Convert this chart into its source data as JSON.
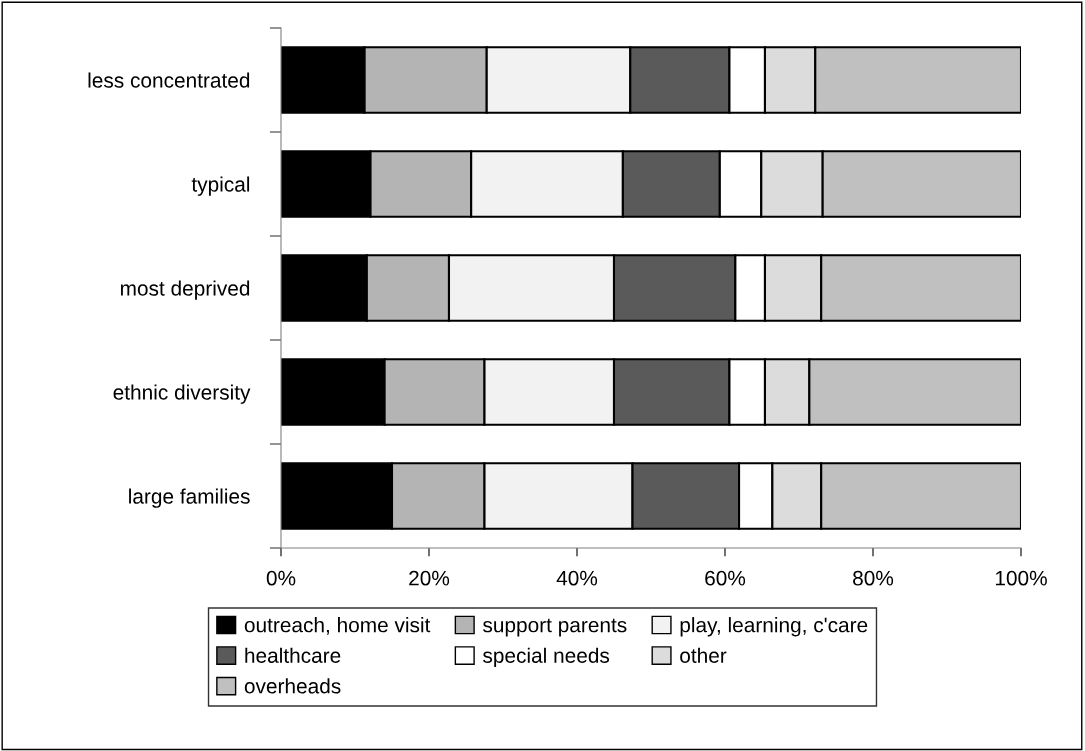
{
  "chart_data": {
    "type": "bar",
    "orientation": "horizontal",
    "stacked": true,
    "categories": [
      "less concentrated",
      "typical",
      "most deprived",
      "ethnic diversity",
      "large families"
    ],
    "series": [
      {
        "name": "outreach, home visit",
        "color": "#000000",
        "values": [
          11.3,
          12.1,
          11.6,
          14.0,
          15.0
        ]
      },
      {
        "name": "support parents",
        "color": "#b4b4b4",
        "values": [
          16.5,
          13.6,
          11.1,
          13.5,
          12.5
        ]
      },
      {
        "name": "play, learning, c'care",
        "color": "#f2f2f2",
        "values": [
          19.4,
          20.5,
          22.3,
          17.5,
          20.0
        ]
      },
      {
        "name": "healthcare",
        "color": "#5a5a5a",
        "values": [
          13.4,
          13.1,
          16.4,
          15.6,
          14.4
        ]
      },
      {
        "name": "special needs",
        "color": "#ffffff",
        "values": [
          4.8,
          5.6,
          4.0,
          4.8,
          4.5
        ]
      },
      {
        "name": "other",
        "color": "#dcdcdc",
        "values": [
          6.8,
          8.3,
          7.6,
          6.0,
          6.6
        ]
      },
      {
        "name": "overheads",
        "color": "#c0c0c0",
        "values": [
          27.8,
          26.8,
          27.0,
          28.6,
          27.0
        ]
      }
    ],
    "xlim": [
      0,
      100
    ],
    "xticks": [
      {
        "value": 0,
        "label": "0%"
      },
      {
        "value": 20,
        "label": "20%"
      },
      {
        "value": 40,
        "label": "40%"
      },
      {
        "value": 60,
        "label": "60%"
      },
      {
        "value": 80,
        "label": "80%"
      },
      {
        "value": 100,
        "label": "100%"
      }
    ],
    "grid": false,
    "legend": "bottom"
  }
}
